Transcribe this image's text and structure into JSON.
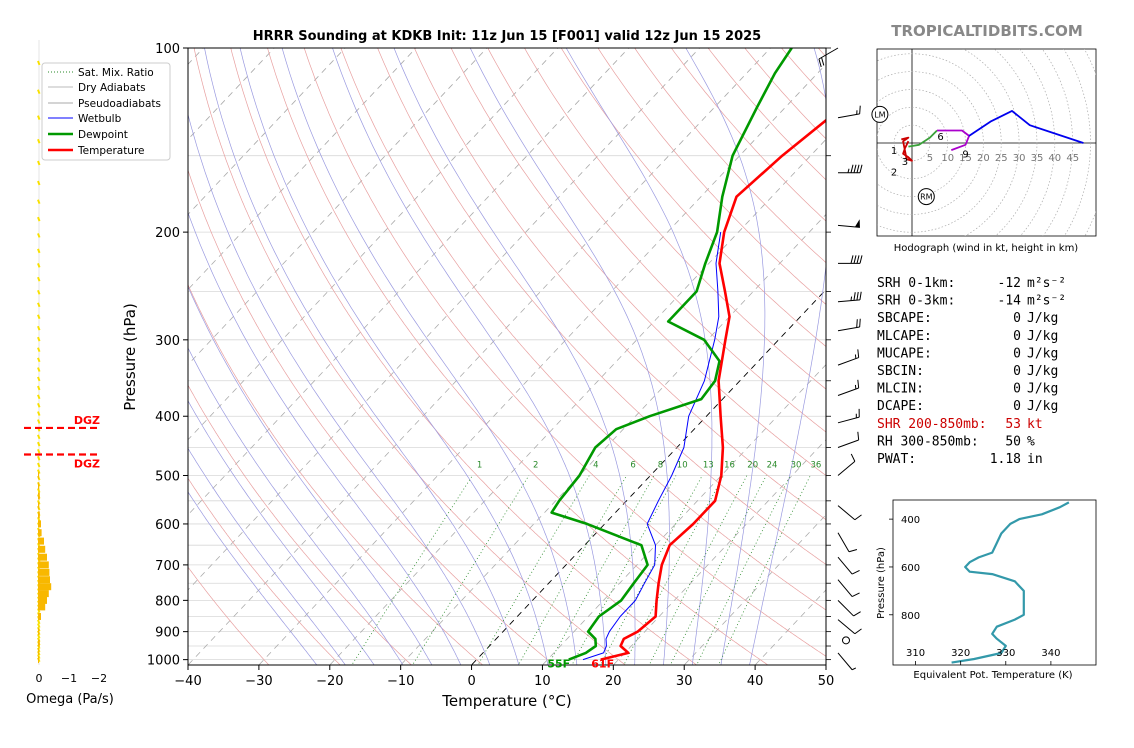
{
  "title": "HRRR Sounding at KDKB Init: 11z Jun 15 [F001] valid 12z Jun 15 2025",
  "brand": "TROPICALTIDBITS.COM",
  "colors": {
    "temperature": "#ff0000",
    "dewpoint": "#009900",
    "wetbulb": "#0000ff",
    "dry_adiabat": "#e8a0a0",
    "moist_adiabat": "#9a9ae0",
    "mixing_ratio": "#2a8a2a",
    "isotherm": "#888888",
    "omega_bar": "#f8b800",
    "omega_dot": "#f8e000",
    "theta_e": "#3399aa",
    "hodo_0_3": "#cc0000",
    "hodo_3_6": "#3aa03a",
    "hodo_6_9": "#aa00cc",
    "hodo_9_12": "#0000ee",
    "shear_text": "#cc0000"
  },
  "skewt": {
    "xlabel": "Temperature (°C)",
    "ylabel": "Pressure (hPa)",
    "x_ticks": [
      "−40",
      "−30",
      "−20",
      "−10",
      "0",
      "10",
      "20",
      "30",
      "40",
      "50"
    ],
    "p_ticks": [
      "100",
      "200",
      "300",
      "400",
      "500",
      "600",
      "700",
      "800",
      "900",
      "1000"
    ],
    "mixing_ratio_labels": [
      "1",
      "2",
      "4",
      "6",
      "8",
      "10",
      "13",
      "16",
      "20",
      "24",
      "30",
      "36"
    ],
    "surface_dewpoint_label": "55F",
    "surface_temp_label": "61F",
    "legend": [
      "Sat. Mix. Ratio",
      "Dry Adiabats",
      "Pseudoadiabats",
      "Wetbulb",
      "Dewpoint",
      "Temperature"
    ]
  },
  "omega": {
    "label": "Omega (Pa/s)",
    "ticks": [
      "0",
      "−1",
      "−2"
    ],
    "dgz_label": "DGZ"
  },
  "hodograph": {
    "caption": "Hodograph (wind in kt, height in km)",
    "ring_labels": [
      "5",
      "10",
      "15",
      "20",
      "25",
      "30",
      "35",
      "40",
      "45"
    ],
    "height_labels": [
      "1",
      "2",
      "3",
      "6",
      "9"
    ],
    "lm": "LM",
    "rm": "RM"
  },
  "indices": [
    {
      "label": "SRH 0-1km:",
      "value": "-12",
      "unit": "m²s⁻²",
      "red": false
    },
    {
      "label": "SRH 0-3km:",
      "value": "-14",
      "unit": "m²s⁻²",
      "red": false
    },
    {
      "label": "SBCAPE:",
      "value": "0",
      "unit": "J/kg",
      "red": false
    },
    {
      "label": "MLCAPE:",
      "value": "0",
      "unit": "J/kg",
      "red": false
    },
    {
      "label": "MUCAPE:",
      "value": "0",
      "unit": "J/kg",
      "red": false
    },
    {
      "label": "SBCIN:",
      "value": "0",
      "unit": "J/kg",
      "red": false
    },
    {
      "label": "MLCIN:",
      "value": "0",
      "unit": "J/kg",
      "red": false
    },
    {
      "label": "DCAPE:",
      "value": "0",
      "unit": "J/kg",
      "red": false
    },
    {
      "label": "SHR 200-850mb:",
      "value": "53",
      "unit": "kt",
      "red": true
    },
    {
      "label": "RH 300-850mb:",
      "value": "50",
      "unit": "%",
      "red": false
    },
    {
      "label": "PWAT:",
      "value": "1.18",
      "unit": "in",
      "red": false
    }
  ],
  "theta_e_panel": {
    "xlabel": "Equivalent Pot. Temperature (K)",
    "ylabel": "Pressure (hPa)",
    "x_ticks": [
      "310",
      "320",
      "330",
      "340"
    ],
    "y_ticks": [
      "400",
      "600",
      "800"
    ]
  },
  "chart_data": {
    "type": "line",
    "title": "HRRR Sounding at KDKB Init: 11z Jun 15 [F001] valid 12z Jun 15 2025",
    "xlabel": "Temperature (°C)",
    "ylabel": "Pressure (hPa)",
    "xlim": [
      -40,
      50
    ],
    "ylim": [
      1000,
      100
    ],
    "y_scale": "log",
    "series": [
      {
        "name": "Temperature",
        "points": [
          [
            1000,
            17.5
          ],
          [
            975,
            20.5
          ],
          [
            950,
            18.5
          ],
          [
            925,
            18
          ],
          [
            900,
            19
          ],
          [
            850,
            19.5
          ],
          [
            800,
            17.5
          ],
          [
            750,
            15.5
          ],
          [
            700,
            13.5
          ],
          [
            650,
            12
          ],
          [
            600,
            12.5
          ],
          [
            550,
            12.5
          ],
          [
            500,
            10
          ],
          [
            450,
            6.5
          ],
          [
            400,
            2
          ],
          [
            350,
            -3
          ],
          [
            300,
            -7.5
          ],
          [
            275,
            -10
          ],
          [
            250,
            -14
          ],
          [
            225,
            -18.5
          ],
          [
            200,
            -22
          ],
          [
            175,
            -25
          ],
          [
            150,
            -24
          ],
          [
            125,
            -22
          ],
          [
            110,
            -19
          ],
          [
            100,
            -16.5
          ]
        ]
      },
      {
        "name": "Dewpoint",
        "points": [
          [
            1000,
            13
          ],
          [
            975,
            14.5
          ],
          [
            950,
            15
          ],
          [
            925,
            14
          ],
          [
            900,
            12
          ],
          [
            850,
            11.5
          ],
          [
            800,
            12.5
          ],
          [
            750,
            12
          ],
          [
            700,
            11.5
          ],
          [
            650,
            8
          ],
          [
            600,
            -2.5
          ],
          [
            575,
            -9
          ],
          [
            550,
            -9.5
          ],
          [
            500,
            -10
          ],
          [
            450,
            -11.5
          ],
          [
            420,
            -11
          ],
          [
            400,
            -8
          ],
          [
            375,
            -3
          ],
          [
            350,
            -3.5
          ],
          [
            325,
            -5.5
          ],
          [
            300,
            -10.5
          ],
          [
            280,
            -18
          ],
          [
            250,
            -18
          ],
          [
            225,
            -20.5
          ],
          [
            200,
            -23
          ],
          [
            175,
            -27
          ],
          [
            150,
            -31
          ],
          [
            125,
            -34
          ],
          [
            110,
            -36
          ],
          [
            100,
            -37
          ]
        ]
      },
      {
        "name": "Wetbulb",
        "points": [
          [
            1000,
            15
          ],
          [
            975,
            17
          ],
          [
            950,
            16.5
          ],
          [
            925,
            15.5
          ],
          [
            900,
            15
          ],
          [
            850,
            14.5
          ],
          [
            800,
            14.5
          ],
          [
            750,
            13.5
          ],
          [
            700,
            12.5
          ],
          [
            650,
            10
          ],
          [
            600,
            6
          ],
          [
            550,
            4.5
          ],
          [
            500,
            3
          ],
          [
            450,
            1
          ],
          [
            400,
            -2.5
          ],
          [
            350,
            -5
          ],
          [
            300,
            -9
          ],
          [
            275,
            -11.5
          ],
          [
            250,
            -15
          ],
          [
            225,
            -19
          ],
          [
            200,
            -22.5
          ]
        ]
      },
      {
        "name": "Omega",
        "unit": "Pa/s",
        "points": [
          [
            1000,
            0
          ],
          [
            970,
            0
          ],
          [
            940,
            0.03
          ],
          [
            900,
            0.02
          ],
          [
            850,
            0.05
          ],
          [
            820,
            0.12
          ],
          [
            800,
            0.15
          ],
          [
            780,
            0.18
          ],
          [
            760,
            0.22
          ],
          [
            740,
            0.2
          ],
          [
            720,
            0.19
          ],
          [
            700,
            0.18
          ],
          [
            680,
            0.15
          ],
          [
            660,
            0.12
          ],
          [
            640,
            0.1
          ],
          [
            620,
            0.06
          ],
          [
            600,
            0.05
          ],
          [
            580,
            0.03
          ],
          [
            560,
            0.02
          ],
          [
            540,
            0.03
          ],
          [
            520,
            0.02
          ],
          [
            500,
            0.01
          ]
        ]
      },
      {
        "name": "Equivalent Pot. Temperature",
        "unit": "K",
        "points": [
          [
            1000,
            318
          ],
          [
            985,
            323
          ],
          [
            960,
            329
          ],
          [
            930,
            330
          ],
          [
            900,
            328
          ],
          [
            880,
            327
          ],
          [
            850,
            328
          ],
          [
            820,
            332
          ],
          [
            800,
            334
          ],
          [
            760,
            334
          ],
          [
            700,
            334
          ],
          [
            660,
            332
          ],
          [
            630,
            327
          ],
          [
            620,
            322
          ],
          [
            600,
            321
          ],
          [
            580,
            322
          ],
          [
            560,
            324
          ],
          [
            540,
            327
          ],
          [
            500,
            328
          ],
          [
            460,
            329
          ],
          [
            420,
            331
          ],
          [
            400,
            333
          ],
          [
            380,
            338
          ],
          [
            350,
            342
          ],
          [
            330,
            344
          ]
        ]
      }
    ],
    "hodograph": {
      "unit": "kt",
      "height_segments": [
        {
          "range_km": "0-3",
          "points": [
            [
              -1,
              0.5
            ],
            [
              -2,
              -1.5
            ],
            [
              -2.5,
              -3
            ],
            [
              -1,
              -4
            ],
            [
              0,
              -5
            ],
            [
              -1.5,
              -4.5
            ],
            [
              -2.5,
              0.5
            ],
            [
              -1,
              1.5
            ],
            [
              -3,
              1
            ]
          ]
        },
        {
          "range_km": "3-6",
          "points": [
            [
              -1,
              -1
            ],
            [
              2,
              -0.5
            ],
            [
              5,
              1.5
            ],
            [
              7,
              3.5
            ]
          ]
        },
        {
          "range_km": "6-9",
          "points": [
            [
              7,
              3.5
            ],
            [
              10,
              3.5
            ],
            [
              14,
              3.5
            ],
            [
              16,
              2
            ],
            [
              15,
              -0.5
            ],
            [
              11,
              -2
            ]
          ]
        },
        {
          "range_km": "9-12",
          "points": [
            [
              16,
              2
            ],
            [
              22,
              6
            ],
            [
              28,
              9
            ],
            [
              33,
              5
            ],
            [
              48,
              0
            ]
          ]
        }
      ],
      "storm_motion": {
        "LM": [
          -9,
          8
        ],
        "RM": [
          4,
          -15
        ]
      }
    },
    "dgz_pressure_hpa": [
      462,
      418
    ]
  }
}
